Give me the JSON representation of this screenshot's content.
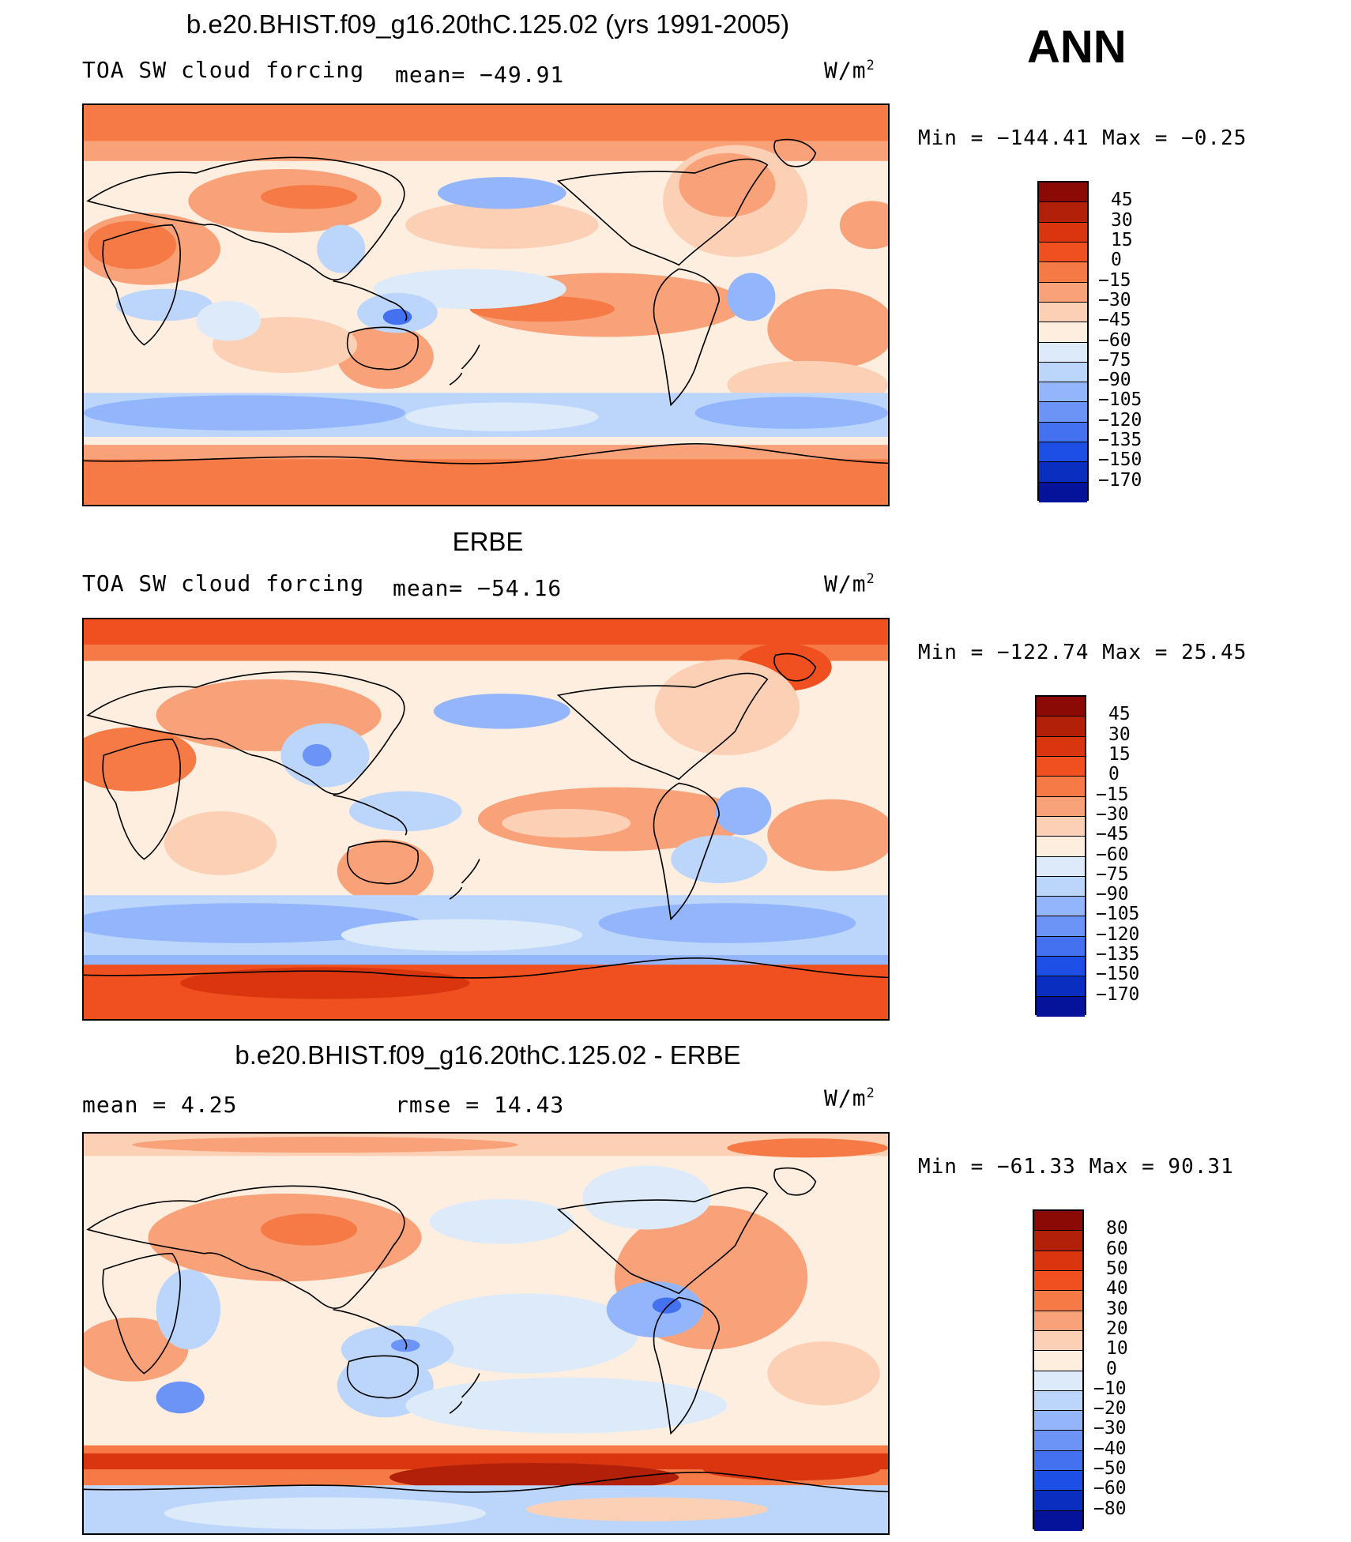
{
  "season": "ANN",
  "panels": [
    {
      "title": "b.e20.BHIST.f09_g16.20thC.125.02 (yrs 1991-2005)",
      "left_label": "TOA SW cloud forcing",
      "center_label": "mean=  −49.91",
      "units": "W/m",
      "units_exp": "2",
      "minmax": "Min  =  −144.41  Max  =   −0.25",
      "colorbar_labels": [
        "45",
        "30",
        "15",
        "0",
        "−15",
        "−30",
        "−45",
        "−60",
        "−75",
        "−90",
        "−105",
        "−120",
        "−135",
        "−150",
        "−170"
      ],
      "colorbar_colors": [
        "#8b0a05",
        "#b3200a",
        "#d9360f",
        "#f05020",
        "#f57a45",
        "#f9a27a",
        "#fcd0b5",
        "#fdeee0",
        "#dceafa",
        "#bcd5fb",
        "#93b5fb",
        "#6c94f6",
        "#4371f0",
        "#1d4ee6",
        "#0a2ec0",
        "#05139a"
      ]
    },
    {
      "title": "ERBE",
      "left_label": "TOA SW cloud forcing",
      "center_label": "mean=  −54.16",
      "units": "W/m",
      "units_exp": "2",
      "minmax": "Min  =  −122.74  Max  =   25.45",
      "colorbar_labels": [
        "45",
        "30",
        "15",
        "0",
        "−15",
        "−30",
        "−45",
        "−60",
        "−75",
        "−90",
        "−105",
        "−120",
        "−135",
        "−150",
        "−170"
      ],
      "colorbar_colors": [
        "#8b0a05",
        "#b3200a",
        "#d9360f",
        "#f05020",
        "#f57a45",
        "#f9a27a",
        "#fcd0b5",
        "#fdeee0",
        "#dceafa",
        "#bcd5fb",
        "#93b5fb",
        "#6c94f6",
        "#4371f0",
        "#1d4ee6",
        "#0a2ec0",
        "#05139a"
      ]
    },
    {
      "title": "b.e20.BHIST.f09_g16.20thC.125.02 - ERBE",
      "left_label": "mean  =     4.25",
      "center_label": "rmse  =    14.43",
      "units": "W/m",
      "units_exp": "2",
      "minmax": "Min  =  −61.33  Max  =   90.31",
      "colorbar_labels": [
        "80",
        "60",
        "50",
        "40",
        "30",
        "20",
        "10",
        "0",
        "−10",
        "−20",
        "−30",
        "−40",
        "−50",
        "−60",
        "−80"
      ],
      "colorbar_colors": [
        "#8b0a05",
        "#b3200a",
        "#d9360f",
        "#f05020",
        "#f57a45",
        "#f9a27a",
        "#fcd0b5",
        "#fdeee0",
        "#dceafa",
        "#bcd5fb",
        "#93b5fb",
        "#6c94f6",
        "#4371f0",
        "#1d4ee6",
        "#0a2ec0",
        "#05139a"
      ]
    }
  ]
}
